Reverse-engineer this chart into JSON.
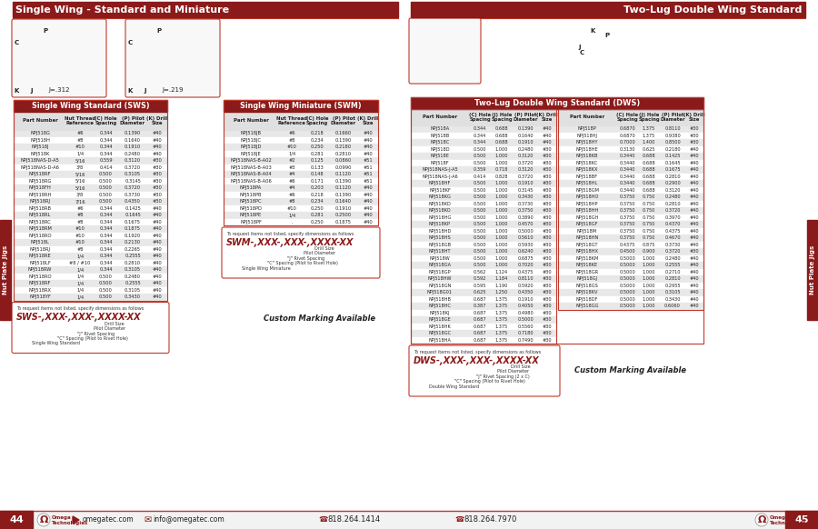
{
  "title_left": "Single Wing - Standard and Miniature",
  "title_right": "Two-Lug Double Wing Standard",
  "bg_color": "#ffffff",
  "header_bg": "#8B1A1A",
  "white": "#ffffff",
  "black": "#222222",
  "row_even": "#e8e8e8",
  "row_odd": "#ffffff",
  "border": "#c0392b",
  "sws_title": "Single Wing Standard (SWS)",
  "swm_title": "Single Wing Miniature (SWM)",
  "dws_title": "Two-Lug Double Wing Standard (DWS)",
  "sws_cols": [
    "Part Number",
    "Nut Thread\nReference",
    "(C) Hole\nSpacing",
    "(P) Pilot\nDiameter",
    "(K) Drill\nSize"
  ],
  "sws_data": [
    [
      "NPJ518G",
      "#6",
      "0.344",
      "0.1390",
      "#40"
    ],
    [
      "NPJ518H",
      "#8",
      "0.344",
      "0.1640",
      "#40"
    ],
    [
      "NPJ518J",
      "#10",
      "0.344",
      "0.1910",
      "#40"
    ],
    [
      "NPJ518K",
      "1/4",
      "0.344",
      "0.2480",
      "#40"
    ],
    [
      "NPJ518NAS-D-A5",
      "5/16",
      "0.559",
      "0.3120",
      "#30"
    ],
    [
      "NPJ518NAS-D-A6",
      "3/8",
      "0.414",
      "0.3720",
      "#30"
    ],
    [
      "NPJ518RF",
      "5/16",
      "0.500",
      "0.3105",
      "#30"
    ],
    [
      "NPJ518RG",
      "5/16",
      "0.500",
      "0.3145",
      "#30"
    ],
    [
      "NPJ518FH",
      "5/16",
      "0.500",
      "0.3720",
      "#30"
    ],
    [
      "NPJ518RH",
      "3/8",
      "0.500",
      "0.3730",
      "#30"
    ],
    [
      "NPJ518RJ",
      "7/16",
      "0.500",
      "0.4350",
      "#30"
    ],
    [
      "NPJ518RB",
      "#6",
      "0.344",
      "0.1425",
      "#40"
    ],
    [
      "NPJ518RL",
      "#8",
      "0.344",
      "0.1645",
      "#40"
    ],
    [
      "NPJ518RC",
      "#8",
      "0.344",
      "0.1675",
      "#40"
    ],
    [
      "NPJ518RM",
      "#10",
      "0.344",
      "0.1875",
      "#40"
    ],
    [
      "NPJ518RO",
      "#10",
      "0.344",
      "0.1920",
      "#40"
    ],
    [
      "NPJ518L",
      "#10",
      "0.344",
      "0.2130",
      "#40"
    ],
    [
      "NPJ518RJ",
      "#8",
      "0.344",
      "0.2265",
      "#40"
    ],
    [
      "NPJ518RE",
      "1/4",
      "0.344",
      "0.2555",
      "#40"
    ],
    [
      "NPJ518LF",
      "#8 / #10",
      "0.344",
      "0.2810",
      "#40"
    ],
    [
      "NPJ518RW",
      "1/4",
      "0.344",
      "0.3105",
      "#40"
    ],
    [
      "NPJ518RO",
      "1/4",
      "0.500",
      "0.2480",
      "#40"
    ],
    [
      "NPJ518RF",
      "1/4",
      "0.500",
      "0.2555",
      "#40"
    ],
    [
      "NPJ518RX",
      "1/4",
      "0.500",
      "0.3105",
      "#40"
    ],
    [
      "NPJ518YF",
      "1/4",
      "0.500",
      "0.3430",
      "#40"
    ]
  ],
  "swm_cols": [
    "Part Number",
    "Nut Thread\nReference",
    "(C) Hole\nSpacing",
    "(P) Pilot\nDiameter",
    "(K) Drill\nSize"
  ],
  "swm_data": [
    [
      "NPJ518JB",
      "#6",
      "0.218",
      "0.1660",
      "#40"
    ],
    [
      "NPJ518JC",
      "#8",
      "0.234",
      "0.1390",
      "#40"
    ],
    [
      "NPJ518JD",
      "#10",
      "0.250",
      "0.2180",
      "#40"
    ],
    [
      "NPJ518JE",
      "1/4",
      "0.281",
      "0.2810",
      "#40"
    ],
    [
      "NPJ518NAS-B-A02",
      "#2",
      "0.125",
      "0.0860",
      "#51"
    ],
    [
      "NPJ518NAS-B-A03",
      "#3",
      "0.133",
      "0.0990",
      "#51"
    ],
    [
      "NPJ518NAS-B-A04",
      "#4",
      "0.148",
      "0.1120",
      "#51"
    ],
    [
      "NPJ518NAS-B-A06",
      "#6",
      "0.171",
      "0.1390",
      "#51"
    ],
    [
      "NPJ518PA",
      "#4",
      "0.203",
      "0.1120",
      "#40"
    ],
    [
      "NPJ518PB",
      "#6",
      "0.218",
      "0.1390",
      "#40"
    ],
    [
      "NPJ518PC",
      "#8",
      "0.234",
      "0.1640",
      "#40"
    ],
    [
      "NPJ518PD",
      "#10",
      "0.250",
      "0.1910",
      "#40"
    ],
    [
      "NPJ518PE",
      "1/4",
      "0.281",
      "0.2500",
      "#40"
    ],
    [
      "NPJ518PF",
      ".",
      "0.250",
      "0.1875",
      "#40"
    ]
  ],
  "dws_cols": [
    "Part Number",
    "(C) Hole\nSpacing",
    "(J) Hole\nSpacing",
    "(P) Pilot\nDiameter",
    "(K) Drill\nSize"
  ],
  "dws_left": [
    [
      "NPJ518A",
      "0.344",
      "0.688",
      "0.1390",
      "#40"
    ],
    [
      "NPJ518B",
      "0.344",
      "0.688",
      "0.1640",
      "#40"
    ],
    [
      "NPJ518C",
      "0.344",
      "0.688",
      "0.1910",
      "#40"
    ],
    [
      "NPJ518D",
      "0.500",
      "1.000",
      "0.2480",
      "#30"
    ],
    [
      "NPJ518E",
      "0.500",
      "1.000",
      "0.3120",
      "#30"
    ],
    [
      "NPJ518F",
      "0.500",
      "1.000",
      "0.3720",
      "#30"
    ],
    [
      "NPJ518NAS-J-A5",
      "0.359",
      "0.718",
      "0.3120",
      "#30"
    ],
    [
      "NPJ518NAS-J-A6",
      "0.414",
      "0.828",
      "0.3720",
      "#30"
    ],
    [
      "NPJ518HF",
      "0.500",
      "1.000",
      "0.1910",
      "#30"
    ],
    [
      "NPJ518KF",
      "0.500",
      "1.000",
      "0.3145",
      "#30"
    ],
    [
      "NPJ518KG",
      "0.500",
      "1.000",
      "0.3430",
      "#30"
    ],
    [
      "NPJ518KD",
      "0.500",
      "1.000",
      "0.3730",
      "#30"
    ],
    [
      "NPJ518KO",
      "0.500",
      "1.000",
      "0.3750",
      "#30"
    ],
    [
      "NPJ518HG",
      "0.500",
      "1.000",
      "0.3890",
      "#30"
    ],
    [
      "NPJ518KP",
      "0.500",
      "1.000",
      "0.4570",
      "#30"
    ],
    [
      "NPJ518HD",
      "0.500",
      "1.000",
      "0.5000",
      "#30"
    ],
    [
      "NPJ518HS",
      "0.500",
      "1.000",
      "0.5610",
      "#30"
    ],
    [
      "NPJ518GB",
      "0.500",
      "1.000",
      "0.5930",
      "#30"
    ],
    [
      "NPJ518HT",
      "0.500",
      "1.000",
      "0.6240",
      "#30"
    ],
    [
      "NPJ518W",
      "0.500",
      "1.000",
      "0.6875",
      "#30"
    ],
    [
      "NPJ518GA",
      "0.500",
      "1.000",
      "0.7020",
      "#30"
    ],
    [
      "NPJ518GP",
      "0.562",
      "1.124",
      "0.4375",
      "#30"
    ],
    [
      "NPJ518HW",
      "0.592",
      "1.184",
      "0.8110",
      "#30"
    ],
    [
      "NPJ518GN",
      "0.595",
      "1.190",
      "0.5920",
      "#30"
    ],
    [
      "NPJ518G01",
      "0.625",
      "1.250",
      "0.4350",
      "#30"
    ],
    [
      "NPJ518HB",
      "0.687",
      "1.375",
      "0.1910",
      "#30"
    ],
    [
      "NPJ518HC",
      "0.387",
      "1.375",
      "0.4050",
      "#30"
    ],
    [
      "NPJ518KJ",
      "0.687",
      "1.375",
      "0.4980",
      "#30"
    ],
    [
      "NPJ518GE",
      "0.687",
      "1.375",
      "0.5000",
      "#30"
    ],
    [
      "NPJ518HK",
      "0.687",
      "1.375",
      "0.5560",
      "#30"
    ],
    [
      "NPJ518GC",
      "0.687",
      "1.375",
      "0.7180",
      "#30"
    ],
    [
      "NPJ518HA",
      "0.687",
      "1.375",
      "0.7490",
      "#30"
    ]
  ],
  "dws_right": [
    [
      "NPJ518P",
      "0.6870",
      "1.375",
      "0.8110",
      "#30"
    ],
    [
      "NPJ518HJ",
      "0.6870",
      "1.375",
      "0.9380",
      "#30"
    ],
    [
      "NPJ518HY",
      "0.7000",
      "1.400",
      "0.8500",
      "#30"
    ],
    [
      "NPJ518HE",
      "0.3130",
      "0.625",
      "0.2180",
      "#40"
    ],
    [
      "NPJ518KB",
      "0.3440",
      "0.688",
      "0.1425",
      "#40"
    ],
    [
      "NPJ518KC",
      "0.3440",
      "0.688",
      "0.1645",
      "#40"
    ],
    [
      "NPJ518KX",
      "0.3440",
      "0.688",
      "0.1675",
      "#40"
    ],
    [
      "NPJ518BF",
      "0.3440",
      "0.688",
      "0.2810",
      "#40"
    ],
    [
      "NPJ518HL",
      "0.3440",
      "0.688",
      "0.2900",
      "#40"
    ],
    [
      "NPJ518GM",
      "0.3440",
      "0.688",
      "0.3120",
      "#40"
    ],
    [
      "NPJ518HO",
      "0.3750",
      "0.750",
      "0.2480",
      "#40"
    ],
    [
      "NPJ518HP",
      "0.3750",
      "0.750",
      "0.2810",
      "#40"
    ],
    [
      "NPJ518HH",
      "0.3750",
      "0.750",
      "0.3720",
      "#40"
    ],
    [
      "NPJ518GH",
      "0.3750",
      "0.750",
      "0.3970",
      "#40"
    ],
    [
      "NPJ518GF",
      "0.3750",
      "0.750",
      "0.4370",
      "#40"
    ],
    [
      "NPJ518M",
      "0.3750",
      "0.750",
      "0.4375",
      "#40"
    ],
    [
      "NPJ518HN",
      "0.3750",
      "0.750",
      "0.4670",
      "#40"
    ],
    [
      "NPJ518GT",
      "0.4375",
      "0.875",
      "0.3730",
      "#40"
    ],
    [
      "NPJ518HX",
      "0.4500",
      "0.900",
      "0.3720",
      "#30"
    ],
    [
      "NPJ518KM",
      "0.5000",
      "1.000",
      "0.2480",
      "#40"
    ],
    [
      "NPJ518KE",
      "0.5000",
      "1.000",
      "0.2555",
      "#40"
    ],
    [
      "NPJ518GR",
      "0.5000",
      "1.000",
      "0.2710",
      "#40"
    ],
    [
      "NPJ518GJ",
      "0.5000",
      "1.000",
      "0.2810",
      "#40"
    ],
    [
      "NPJ518GS",
      "0.5000",
      "1.000",
      "0.2955",
      "#40"
    ],
    [
      "NPJ518KV",
      "0.5000",
      "1.000",
      "0.3105",
      "#40"
    ],
    [
      "NPJ518DF",
      "0.5000",
      "1.000",
      "0.3430",
      "#40"
    ],
    [
      "NPJ518GG",
      "0.5000",
      "1.000",
      "0.6060",
      "#40"
    ]
  ],
  "page_left": "44",
  "page_right": "45",
  "website": "omegatec.com",
  "email": "info@omegatec.com",
  "phone1": "818.264.1414",
  "phone2": "818.264.7970",
  "side_label": "Nut Plate Jigs"
}
